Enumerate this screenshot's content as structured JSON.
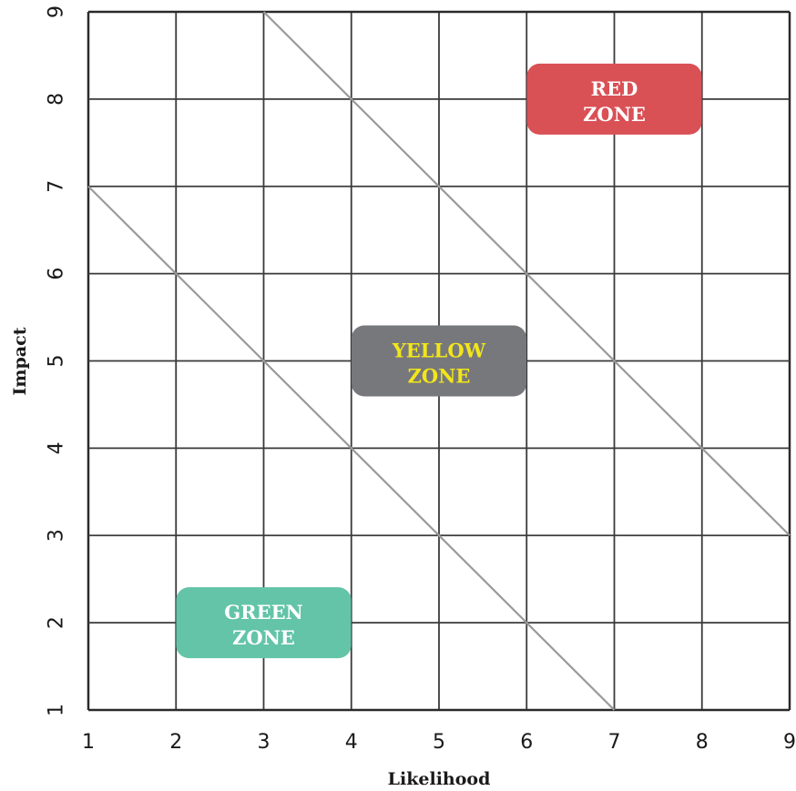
{
  "chart_data": {
    "type": "heatmap",
    "xlabel": "Likelihood",
    "ylabel": "Impact",
    "xlim": [
      1,
      9
    ],
    "ylim": [
      1,
      9
    ],
    "x_ticks": [
      "1",
      "2",
      "3",
      "4",
      "5",
      "6",
      "7",
      "8",
      "9"
    ],
    "y_ticks": [
      "1",
      "2",
      "3",
      "4",
      "5",
      "6",
      "7",
      "8",
      "9"
    ],
    "grid": true,
    "boundaries": [
      {
        "from": [
          1,
          7
        ],
        "to": [
          7,
          1
        ]
      },
      {
        "from": [
          3,
          9
        ],
        "to": [
          9,
          3
        ]
      }
    ],
    "zones": [
      {
        "label_line1": "RED",
        "label_line2": "ZONE",
        "center": [
          7,
          8
        ],
        "fill": "#d95055",
        "text_color": "#ffffff"
      },
      {
        "label_line1": "YELLOW",
        "label_line2": "ZONE",
        "center": [
          5,
          5
        ],
        "fill": "#77787c",
        "text_color": "#f2e61a"
      },
      {
        "label_line1": "GREEN",
        "label_line2": "ZONE",
        "center": [
          3,
          2
        ],
        "fill": "#63c4a7",
        "text_color": "#ffffff"
      }
    ]
  }
}
